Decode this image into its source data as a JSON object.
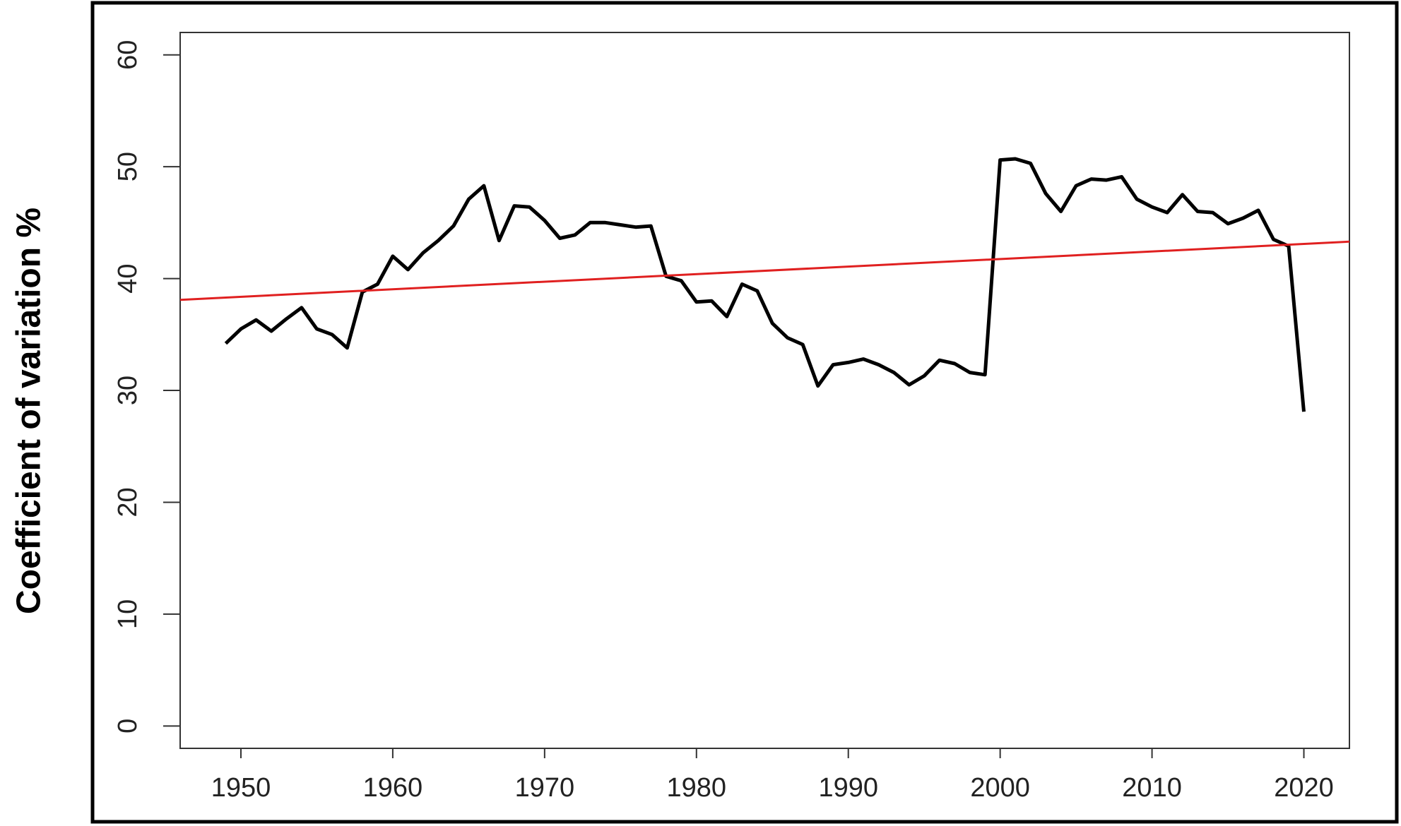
{
  "chart_data": {
    "type": "line",
    "title": "",
    "xlabel": "",
    "ylabel": "Coefficient of variation %",
    "xlim": [
      1946,
      2023
    ],
    "ylim": [
      -2,
      62
    ],
    "yticks": [
      0,
      10,
      20,
      30,
      40,
      50,
      60
    ],
    "xticks": [
      1950,
      1960,
      1970,
      1980,
      1990,
      2000,
      2010,
      2020
    ],
    "grid": false,
    "legend": "none",
    "series": [
      {
        "color": "#000000",
        "x": [
          1949,
          1950,
          1951,
          1952,
          1953,
          1954,
          1955,
          1956,
          1957,
          1958,
          1959,
          1960,
          1961,
          1962,
          1963,
          1964,
          1965,
          1966,
          1967,
          1968,
          1969,
          1970,
          1971,
          1972,
          1973,
          1974,
          1975,
          1976,
          1977,
          1978,
          1979,
          1980,
          1981,
          1982,
          1983,
          1984,
          1985,
          1986,
          1987,
          1988,
          1989,
          1990,
          1991,
          1992,
          1993,
          1994,
          1995,
          1996,
          1997,
          1998,
          1999,
          2000,
          2001,
          2002,
          2003,
          2004,
          2005,
          2006,
          2007,
          2008,
          2009,
          2010,
          2011,
          2012,
          2013,
          2014,
          2015,
          2016,
          2017,
          2018,
          2019,
          2020
        ],
        "values": [
          34.2,
          35.5,
          36.3,
          35.3,
          36.4,
          37.4,
          35.5,
          35.0,
          33.8,
          38.8,
          39.5,
          42.0,
          40.8,
          42.3,
          43.4,
          44.7,
          47.1,
          48.3,
          43.4,
          46.5,
          46.4,
          45.2,
          43.6,
          43.9,
          45.0,
          45.0,
          44.8,
          44.6,
          44.7,
          40.2,
          39.8,
          37.9,
          38.0,
          36.6,
          39.5,
          38.9,
          36.0,
          34.7,
          34.1,
          30.4,
          32.3,
          32.5,
          32.8,
          32.3,
          31.6,
          30.5,
          31.3,
          32.7,
          32.4,
          31.6,
          31.4,
          50.6,
          50.7,
          50.3,
          47.6,
          46.0,
          48.3,
          48.9,
          48.8,
          49.1,
          47.1,
          46.4,
          45.9,
          47.5,
          46.0,
          45.9,
          44.9,
          45.4,
          46.1,
          43.5,
          42.9,
          28.1
        ]
      },
      {
        "color": "#e02020",
        "x": [
          1946,
          2023
        ],
        "values": [
          38.1,
          43.3
        ]
      }
    ]
  }
}
